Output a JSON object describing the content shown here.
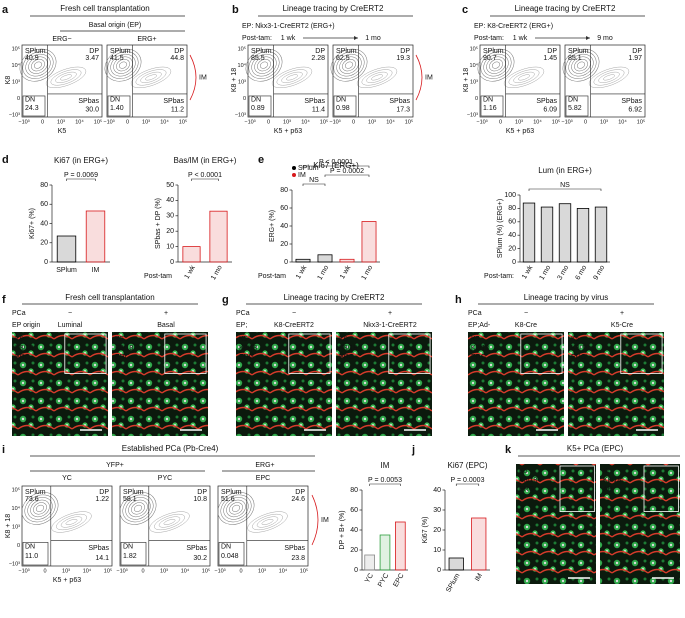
{
  "flow_ticks": [
    "−10³",
    "0",
    "10³",
    "10⁴",
    "10⁵"
  ],
  "panels": {
    "a": {
      "letter": "a",
      "title": "Fresh cell transplantation",
      "subtitle": "Basal origin (EP)",
      "groups": [
        "ERG−",
        "ERG+"
      ],
      "xlabel": "K5",
      "ylabel": "K8",
      "im": "IM",
      "plots": [
        {
          "tl": "SPlum",
          "tlv": "40.9",
          "tr": "DP",
          "trv": "3.47",
          "bl": "DN",
          "blv": "24.3",
          "br": "SPbas",
          "brv": "30.0",
          "color": "#000000"
        },
        {
          "tl": "SPlum",
          "tlv": "41.5",
          "tr": "DP",
          "trv": "44.8",
          "bl": "DN",
          "blv": "1.40",
          "br": "SPbas",
          "brv": "11.2",
          "color": "#d7191c"
        }
      ]
    },
    "b": {
      "letter": "b",
      "title": "Lineage tracing by CreERT2",
      "subtitle": "EP: Nkx3-1-CreERT2 (ERG+)",
      "posttam": "Post-tam:",
      "times": [
        "1 wk",
        "1 mo"
      ],
      "xlabel": "K5 + p63",
      "ylabel": "K8 + 18",
      "im": "IM",
      "plots": [
        {
          "tl": "SPlum",
          "tlv": "85.5",
          "tr": "DP",
          "trv": "2.28",
          "bl": "DN",
          "blv": "0.89",
          "br": "SPbas",
          "brv": "11.4",
          "color": "#d7191c"
        },
        {
          "tl": "SPlum",
          "tlv": "62.5",
          "tr": "DP",
          "trv": "19.3",
          "bl": "DN",
          "blv": "0.98",
          "br": "SPbas",
          "brv": "17.3",
          "color": "#d7191c"
        }
      ]
    },
    "c": {
      "letter": "c",
      "title": "Lineage tracing by CreERT2",
      "subtitle": "EP: K8-CreERT2 (ERG+)",
      "posttam": "Post-tam:",
      "times": [
        "1 wk",
        "9 mo"
      ],
      "xlabel": "K5 + p63",
      "ylabel": "K8 + 18",
      "plots": [
        {
          "tl": "SPlum",
          "tlv": "90.7",
          "tr": "DP",
          "trv": "1.45",
          "bl": "DN",
          "blv": "1.16",
          "br": "SPbas",
          "brv": "6.09",
          "color": "#000000"
        },
        {
          "tl": "SPlum",
          "tlv": "85.1",
          "tr": "DP",
          "trv": "1.97",
          "bl": "DN",
          "blv": "5.82",
          "br": "SPbas",
          "brv": "6.92",
          "color": "#000000"
        }
      ]
    },
    "f": {
      "letter": "f",
      "title": "Fresh cell transplantation",
      "pca": "PCa",
      "signs": [
        "−",
        "+"
      ],
      "origin": "EP origin",
      "columns": [
        "Luminal",
        "Basal"
      ],
      "stains": [
        "K5",
        "K8/18",
        "ERG"
      ]
    },
    "g": {
      "letter": "g",
      "title": "Lineage tracing by CreERT2",
      "pca": "PCa",
      "signs": [
        "−",
        "+"
      ],
      "origin": "EP;",
      "columns": [
        "K8-CreERT2",
        "Nkx3-1-CreERT2"
      ],
      "stains": [
        "K5",
        "K8/18",
        "ERG"
      ]
    },
    "h": {
      "letter": "h",
      "title": "Lineage tracing by virus",
      "pca": "PCa",
      "signs": [
        "−",
        "+"
      ],
      "origin": "EP;Ad-",
      "columns": [
        "K8-Cre",
        "K5-Cre"
      ],
      "stains": [
        "K5",
        "K8/18",
        "ERG"
      ]
    },
    "i": {
      "letter": "i",
      "title": "Established PCa (Pb-Cre4)",
      "groups": [
        "YFP+",
        "ERG+"
      ],
      "names": [
        "YC",
        "PYC",
        "EPC"
      ],
      "xlabel": "K5 + p63",
      "ylabel": "K8 + 18",
      "im": "IM",
      "plots": [
        {
          "tl": "SPlum",
          "tlv": "73.6",
          "tr": "DP",
          "trv": "1.22",
          "bl": "DN",
          "blv": "11.0",
          "br": "SPbas",
          "brv": "14.1",
          "color": "#000000"
        },
        {
          "tl": "SPlum",
          "tlv": "58.1",
          "tr": "DP",
          "trv": "10.8",
          "bl": "DN",
          "blv": "1.82",
          "br": "SPbas",
          "brv": "30.2",
          "color": "#d7191c"
        },
        {
          "tl": "SPlum",
          "tlv": "51.6",
          "tr": "DP",
          "trv": "24.6",
          "bl": "DN",
          "blv": "0.048",
          "br": "SPbas",
          "brv": "23.8",
          "color": "#d7191c"
        }
      ]
    },
    "d": {
      "letter": "d"
    },
    "e": {
      "letter": "e"
    },
    "j": {
      "letter": "j"
    },
    "k": {
      "letter": "k",
      "title": "K5+ PCa (EPC)",
      "stains": [
        [
          "K5",
          "K8/18",
          "ERG"
        ],
        [
          "K5",
          "K8/18",
          "AR"
        ]
      ]
    }
  },
  "chart_data": [
    {
      "type": "bar",
      "title": "Ki67 (in ERG+)",
      "ylabel": "Ki67+ (%)",
      "categories": [
        "SPlum",
        "IM"
      ],
      "values": [
        27,
        53
      ],
      "colors": [
        "#000000",
        "#d7191c"
      ],
      "ylim": [
        0,
        80
      ],
      "yticks": [
        0,
        20,
        40,
        60,
        80
      ],
      "annotations": [
        "P = 0.0069"
      ]
    },
    {
      "type": "bar",
      "title": "Bas/IM (in ERG+)",
      "ylabel": "SPbas + DP (%)",
      "xlabel": "Post-tam",
      "categories": [
        "1 wk",
        "1 mo"
      ],
      "values": [
        10,
        33
      ],
      "colors": [
        "#d7191c",
        "#d7191c"
      ],
      "ylim": [
        0,
        50
      ],
      "yticks": [
        0,
        10,
        20,
        30,
        40,
        50
      ],
      "annotations": [
        "P < 0.0001"
      ]
    },
    {
      "type": "bar",
      "title": "Ki67 (ERG+)",
      "ylabel": "ERG+ (%)",
      "xlabel": "Post-tam",
      "categories": [
        "1 wk",
        "1 mo",
        "1 wk",
        "1 mo"
      ],
      "values": [
        3,
        8,
        3,
        45
      ],
      "colors": [
        "#000000",
        "#000000",
        "#d7191c",
        "#d7191c"
      ],
      "ylim": [
        0,
        80
      ],
      "yticks": [
        0,
        20,
        40,
        60,
        80
      ],
      "annotations": [
        "NS",
        "P = 0.0002",
        "P < 0.0001"
      ],
      "legend": [
        {
          "name": "SPlum",
          "color": "#000000"
        },
        {
          "name": "IM",
          "color": "#d7191c"
        }
      ]
    },
    {
      "type": "bar",
      "title": "Lum (in ERG+)",
      "ylabel": "SPlum (%) (ERG+)",
      "xlabel": "Post-tam:",
      "categories": [
        "1 wk",
        "1 mo",
        "3 mo",
        "6 mo",
        "9 mo"
      ],
      "values": [
        88,
        82,
        87,
        80,
        82
      ],
      "colors": [
        "#000000",
        "#000000",
        "#000000",
        "#000000",
        "#000000"
      ],
      "ylim": [
        0,
        100
      ],
      "yticks": [
        0,
        20,
        40,
        60,
        80,
        100
      ],
      "annotations": [
        "NS"
      ]
    },
    {
      "type": "bar",
      "title": "IM",
      "ylabel": "DP + B+ (%)",
      "categories": [
        "YC",
        "PYC",
        "EPC"
      ],
      "values": [
        15,
        35,
        48
      ],
      "colors": [
        "#888888",
        "#2e9e3e",
        "#d7191c"
      ],
      "ylim": [
        0,
        80
      ],
      "yticks": [
        0,
        20,
        40,
        60,
        80
      ],
      "annotations": [
        "P = 0.0053"
      ]
    },
    {
      "type": "bar",
      "title": "Ki67 (EPC)",
      "ylabel": "Ki67 (%)",
      "categories": [
        "SPlum",
        "IM"
      ],
      "values": [
        6,
        26
      ],
      "colors": [
        "#000000",
        "#d7191c"
      ],
      "ylim": [
        0,
        40
      ],
      "yticks": [
        0,
        10,
        20,
        30,
        40
      ],
      "annotations": [
        "P = 0.0003"
      ]
    }
  ]
}
